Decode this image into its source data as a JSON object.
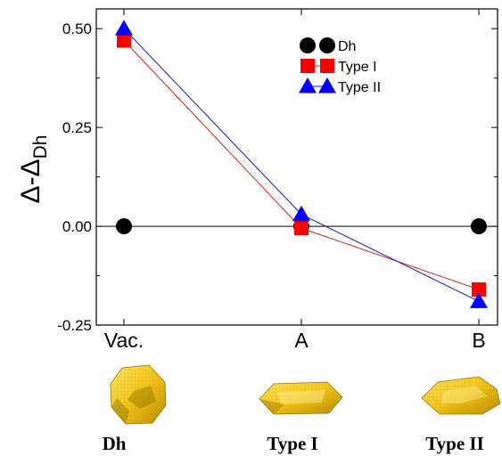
{
  "chart_data": {
    "type": "line",
    "categories": [
      "Vac.",
      "A",
      "B"
    ],
    "ylabel": "Δ-Δ",
    "ylabel_sub": "Dh",
    "ylim": [
      -0.25,
      0.55
    ],
    "yticks": [
      -0.25,
      0.0,
      0.25,
      0.5
    ],
    "ytick_labels": [
      "-0.25",
      "0.00",
      "0.25",
      "0.50"
    ],
    "grid": false,
    "legend_position": "top-right",
    "series": [
      {
        "name": "Dh",
        "values": [
          0.0,
          0.0,
          0.0
        ],
        "color": "#000000",
        "marker": "circle"
      },
      {
        "name": "Type I",
        "values": [
          0.47,
          -0.005,
          -0.16
        ],
        "color": "#ff0000",
        "marker": "square"
      },
      {
        "name": "Type II",
        "values": [
          0.5,
          0.03,
          -0.19
        ],
        "color": "#0000ff",
        "marker": "triangle"
      }
    ]
  },
  "structures": [
    {
      "caption": "Dh",
      "color": "#f0c419"
    },
    {
      "caption": "Type I",
      "color": "#f0c419"
    },
    {
      "caption": "Type II",
      "color": "#f0c419"
    }
  ]
}
